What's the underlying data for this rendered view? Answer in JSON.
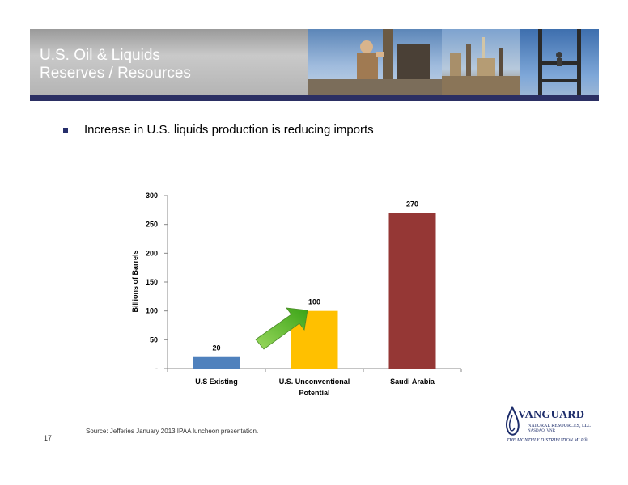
{
  "header": {
    "title_line1": "U.S. Oil & Liquids",
    "title_line2": "Reserves / Resources"
  },
  "bullet": {
    "text": "Increase in U.S. liquids production is reducing imports"
  },
  "chart_data": {
    "type": "bar",
    "categories": [
      [
        "U.S Existing"
      ],
      [
        "U.S. Unconventional",
        "Potential"
      ],
      [
        "Saudi Arabia"
      ]
    ],
    "values": [
      20,
      100,
      270
    ],
    "data_labels": [
      "20",
      "100",
      "270"
    ],
    "bar_colors": [
      "#4f81bd",
      "#ffc000",
      "#953735"
    ],
    "ylabel": "Billions of Barrels",
    "ylim": [
      0,
      300
    ],
    "yticks": [
      0,
      50,
      100,
      150,
      200,
      250,
      300
    ],
    "ytick_labels": [
      "-",
      "50",
      "100",
      "150",
      "200",
      "250",
      "300"
    ],
    "annotation": "green-arrow-up-right",
    "grid": false,
    "legend": "none"
  },
  "footer": {
    "page_number": "17",
    "source": "Source:  Jefferies January 2013 IPAA luncheon presentation."
  },
  "logo": {
    "name": "VANGUARD",
    "sub": "NATURAL RESOURCES, LLC",
    "sub2": "NASDAQ: VNR",
    "tagline": "THE MONTHLY DISTRIBUTION MLP®"
  },
  "colors": {
    "banner_bar": "#2b2f63",
    "arrow_green": "#5fbf2a"
  }
}
